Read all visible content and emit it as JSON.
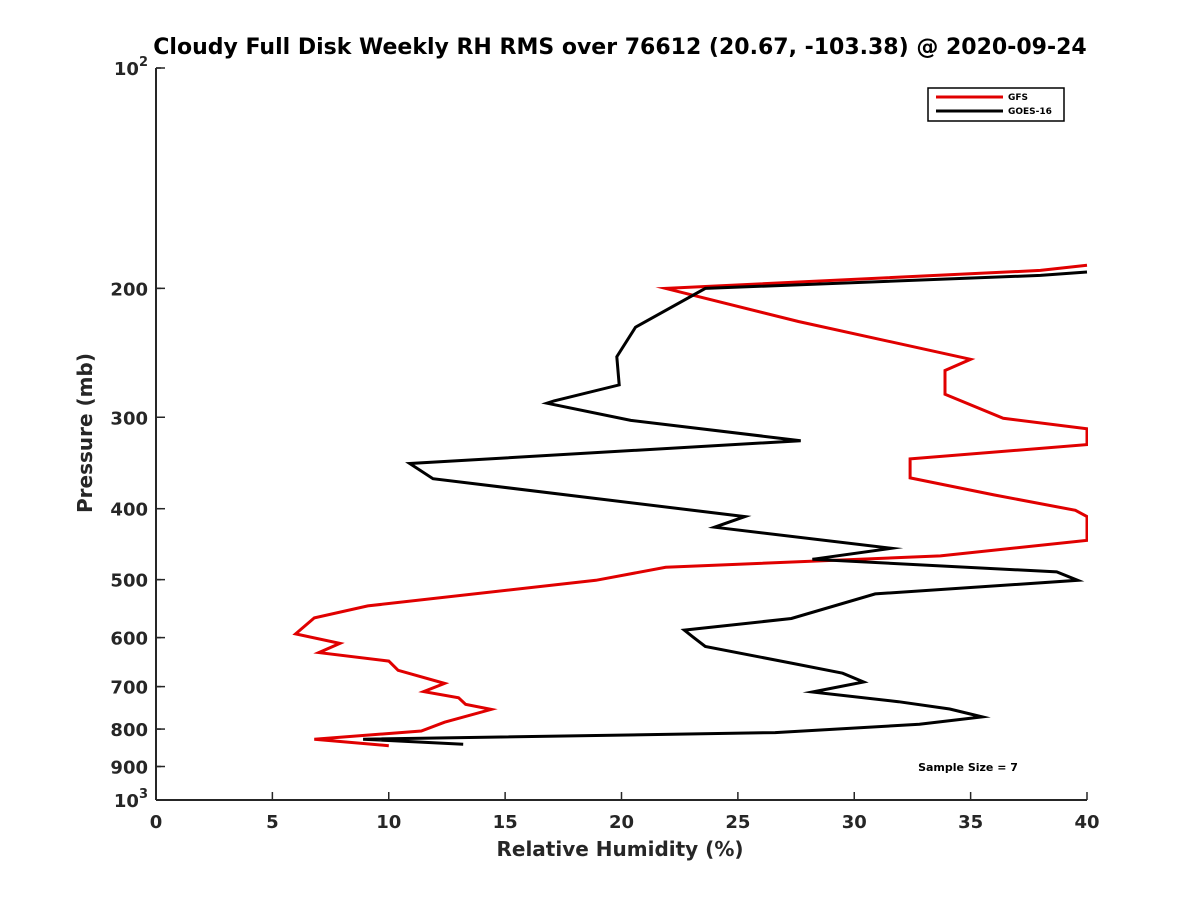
{
  "chart_data": {
    "type": "line",
    "title": "Cloudy Full Disk Weekly RH RMS over 76612 (20.67, -103.38) @ 2020-09-24",
    "xlabel": "Relative Humidity (%)",
    "ylabel": "Pressure (mb)",
    "xlim": [
      0,
      40
    ],
    "ylim": [
      100,
      1000
    ],
    "yscale": "log",
    "yreversed": true,
    "x_ticks": [
      "0",
      "5",
      "10",
      "15",
      "20",
      "25",
      "30",
      "35",
      "40"
    ],
    "y_ticks": [
      {
        "value": 100,
        "label": "10",
        "exp": "2"
      },
      {
        "value": 200,
        "label": "200"
      },
      {
        "value": 300,
        "label": "300"
      },
      {
        "value": 400,
        "label": "400"
      },
      {
        "value": 500,
        "label": "500"
      },
      {
        "value": 600,
        "label": "600"
      },
      {
        "value": 700,
        "label": "700"
      },
      {
        "value": 800,
        "label": "800"
      },
      {
        "value": 900,
        "label": "900"
      },
      {
        "value": 1000,
        "label": "10",
        "exp": "3"
      }
    ],
    "legend_position": "top-right",
    "series": [
      {
        "name": "GFS",
        "color": "#e00000",
        "points": [
          [
            40.0,
            186
          ],
          [
            38.0,
            189
          ],
          [
            21.9,
            200
          ],
          [
            27.6,
            222
          ],
          [
            35.0,
            250
          ],
          [
            33.9,
            259
          ],
          [
            33.9,
            279
          ],
          [
            36.4,
            301
          ],
          [
            40.0,
            311
          ],
          [
            40.0,
            327
          ],
          [
            32.4,
            342
          ],
          [
            32.4,
            363
          ],
          [
            36.0,
            383
          ],
          [
            39.5,
            402
          ],
          [
            40.0,
            410
          ],
          [
            40.0,
            442
          ],
          [
            33.7,
            464
          ],
          [
            21.9,
            481
          ],
          [
            18.9,
            501
          ],
          [
            9.1,
            543
          ],
          [
            6.8,
            564
          ],
          [
            6.0,
            593
          ],
          [
            7.9,
            611
          ],
          [
            7.0,
            629
          ],
          [
            10.0,
            646
          ],
          [
            10.4,
            665
          ],
          [
            12.4,
            693
          ],
          [
            11.5,
            711
          ],
          [
            13.0,
            725
          ],
          [
            13.3,
            740
          ],
          [
            14.4,
            752
          ],
          [
            12.4,
            783
          ],
          [
            11.4,
            805
          ],
          [
            6.8,
            826
          ],
          [
            10.0,
            843
          ]
        ]
      },
      {
        "name": "GOES-16",
        "color": "#000000",
        "points": [
          [
            40.0,
            190
          ],
          [
            38.0,
            192
          ],
          [
            23.6,
            200
          ],
          [
            20.6,
            226
          ],
          [
            19.8,
            248
          ],
          [
            19.9,
            271
          ],
          [
            17.1,
            285
          ],
          [
            16.8,
            287
          ],
          [
            20.4,
            303
          ],
          [
            27.7,
            323
          ],
          [
            10.9,
            347
          ],
          [
            11.9,
            364
          ],
          [
            25.3,
            410
          ],
          [
            24.0,
            424
          ],
          [
            31.6,
            453
          ],
          [
            28.2,
            469
          ],
          [
            38.7,
            488
          ],
          [
            39.6,
            501
          ],
          [
            30.9,
            523
          ],
          [
            27.3,
            565
          ],
          [
            22.7,
            586
          ],
          [
            23.1,
            600
          ],
          [
            23.6,
            617
          ],
          [
            27.3,
            650
          ],
          [
            29.5,
            671
          ],
          [
            30.4,
            690
          ],
          [
            28.2,
            712
          ],
          [
            31.9,
            734
          ],
          [
            34.1,
            751
          ],
          [
            35.5,
            770
          ],
          [
            32.8,
            788
          ],
          [
            26.6,
            809
          ],
          [
            8.9,
            826
          ],
          [
            13.2,
            839
          ]
        ]
      }
    ],
    "annotation": "Sample Size = 7"
  }
}
